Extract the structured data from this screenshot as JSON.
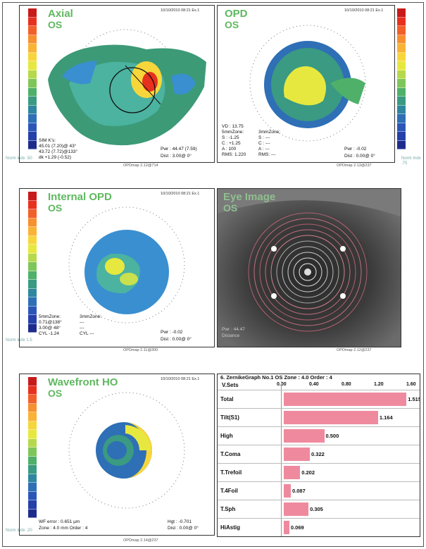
{
  "panels": {
    "axial": {
      "title": "Axial",
      "eye": "OS",
      "date": "10/10/2010 08:21 Ex.1",
      "sim_title": "SIM K's:",
      "sim_k1": "45.01 (7.20)@ 43°",
      "sim_k2": "43.72 (7.72)@133°",
      "sim_dk": "dk +1.29 (-0.52)",
      "pwr": "Pwr : 44.47 (7.59)",
      "dist": "Dist : 3.00@ 0°",
      "scale_label": "Norm Indx .50",
      "footer": "OPDmap 2.12@714"
    },
    "opd": {
      "title": "OPD",
      "eye": "OS",
      "date": "10/10/2010 08:21 Ex.1",
      "vd": "VD : 13.75",
      "zone1": "5mmZone:",
      "zone2": "3mmZone:",
      "s1": "S : -1.25",
      "c1": "C : +1.25",
      "a1": "A : 100",
      "rms1": "RMS: 1.220",
      "s2": "S : ---",
      "c2": "C : ---",
      "a2": "A : ---",
      "rms2": "RMS: ---",
      "pwr": "Pwr : -0.02",
      "dist": "Dist : 0.00@ 0°",
      "scale_label": "Norm Indx .75",
      "footer": "OPDmap 2.13@237"
    },
    "internal": {
      "title": "Internal OPD",
      "eye": "OS",
      "date": "10/10/2010 08:21 Ex.1",
      "zone1": "5mmZone:",
      "zone2": "3mmZone:",
      "v1": "0.71@138°",
      "v2": "3.00@ 48°",
      "cyl": "CYL -1.24",
      "v3": "---",
      "v4": "---",
      "cyl2": "CYL ---",
      "pwr": "Pwr : -0.02",
      "dist": "Dist : 0.00@ 0°",
      "scale_label": "Norm Indx 1.5",
      "footer": "OPDmap 2.11@300"
    },
    "eyeimage": {
      "title": "Eye Image",
      "eye": "OS",
      "info1": "Pwr : 44.47",
      "info2": "Distance",
      "footer": "OPDmap 2.12@237"
    },
    "wavefront": {
      "title": "Wavefront HO",
      "eye": "OS",
      "date": "10/10/2010 08:21 Ex.1",
      "wf": "WF error : 0.651 µm",
      "zone": "Zone : 4.0 mm Order : 4",
      "hgt": "Hgt : -0.701",
      "dist": "Dist : 0.00@ 0°",
      "scale_label": "Norm Indx .20",
      "footer": "OPDmap 2.14@237"
    }
  },
  "zernike": {
    "header": "6. ZernikeGraph No.1 OS Zone : 4.0 Order : 4",
    "col_label": "V.Sets",
    "ticks": [
      "0.00",
      "0.40",
      "0.80",
      "1.20",
      "1.60"
    ],
    "rows": [
      {
        "label": "Total",
        "value": 1.515,
        "value_text": "1.515"
      },
      {
        "label": "Tilt(S1)",
        "value": 1.164,
        "value_text": "1.164"
      },
      {
        "label": "High",
        "value": 0.5,
        "value_text": "0.500"
      },
      {
        "label": "T.Coma",
        "value": 0.322,
        "value_text": "0.322"
      },
      {
        "label": "T.Trefoil",
        "value": 0.202,
        "value_text": "0.202"
      },
      {
        "label": "T.4Foil",
        "value": 0.087,
        "value_text": "0.087"
      },
      {
        "label": "T.Sph",
        "value": 0.305,
        "value_text": "0.305"
      },
      {
        "label": "HiAstig",
        "value": 0.069,
        "value_text": "0.069"
      }
    ],
    "max": 1.6
  },
  "colors": {
    "scale": [
      "#c81a1a",
      "#e8301e",
      "#f2602a",
      "#f7902f",
      "#f9b335",
      "#f7d63b",
      "#e7e83f",
      "#b6d94b",
      "#7fc65a",
      "#4fb06a",
      "#3a9a82",
      "#2f86a0",
      "#2e6fb6",
      "#2b56b8",
      "#2540a8",
      "#1d2c8c"
    ]
  }
}
